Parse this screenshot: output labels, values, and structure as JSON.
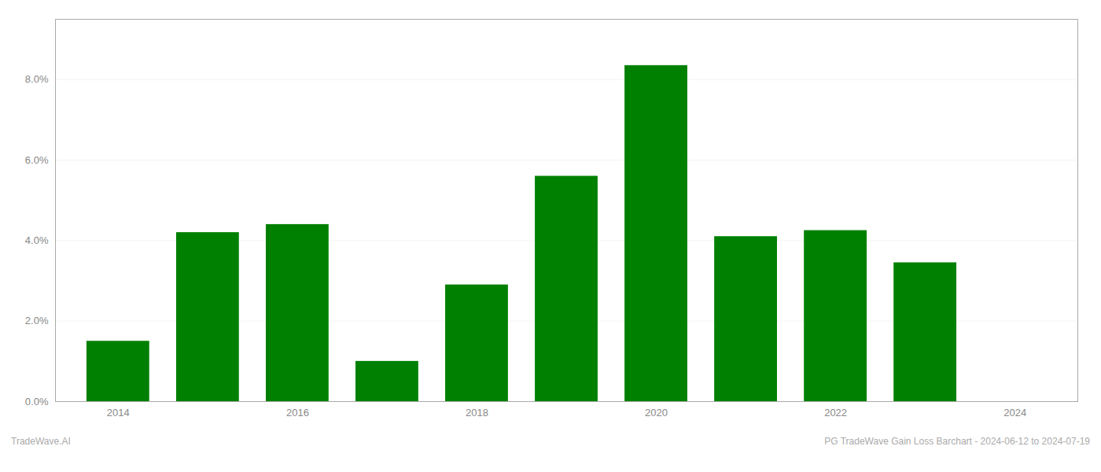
{
  "chart_data": {
    "type": "bar",
    "x": [
      2014,
      2015,
      2016,
      2017,
      2018,
      2019,
      2020,
      2021,
      2022,
      2023,
      2024
    ],
    "values": [
      0.015,
      0.042,
      0.044,
      0.01,
      0.029,
      0.056,
      0.0835,
      0.041,
      0.0425,
      0.0345,
      0.0
    ],
    "color": "#008000",
    "xlim": [
      2013.3,
      2024.7
    ],
    "xticks": [
      2014,
      2016,
      2018,
      2020,
      2022,
      2024
    ],
    "ylim": [
      0,
      0.095
    ],
    "yticks": [
      {
        "value": 0.0,
        "label": "0.0%"
      },
      {
        "value": 0.02,
        "label": "2.0%"
      },
      {
        "value": 0.04,
        "label": "4.0%"
      },
      {
        "value": 0.06,
        "label": "6.0%"
      },
      {
        "value": 0.08,
        "label": "8.0%"
      }
    ],
    "grid": true,
    "annotations": [
      "TradeWave.AI",
      "PG TradeWave Gain Loss Barchart - 2024-06-12 to 2024-07-19"
    ]
  }
}
